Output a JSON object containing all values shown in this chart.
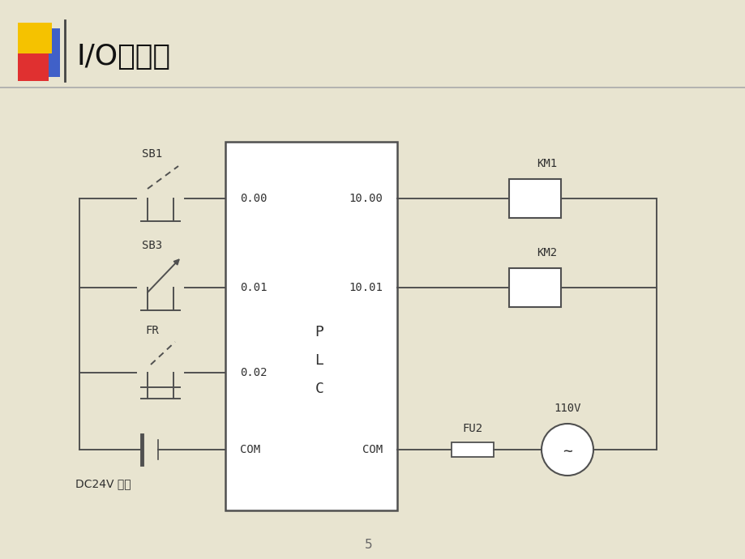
{
  "title": "I/O接线图",
  "bg_color": "#e8e4d0",
  "line_color": "#505050",
  "text_color": "#303030",
  "title_color": "#111111",
  "title_fontsize": 26,
  "label_fontsize": 10,
  "dc24v_label": "DC24V 电源",
  "fu2_label": "FU2",
  "voltage_label": "110V",
  "plc_text": [
    "P",
    "L",
    "C"
  ],
  "in_labels": [
    "0.00",
    "0.01",
    "0.02"
  ],
  "out_labels": [
    "10.00",
    "10.01"
  ],
  "in_names": [
    "SB1",
    "SB3",
    "FR"
  ],
  "out_names": [
    "KM1",
    "KM2"
  ]
}
